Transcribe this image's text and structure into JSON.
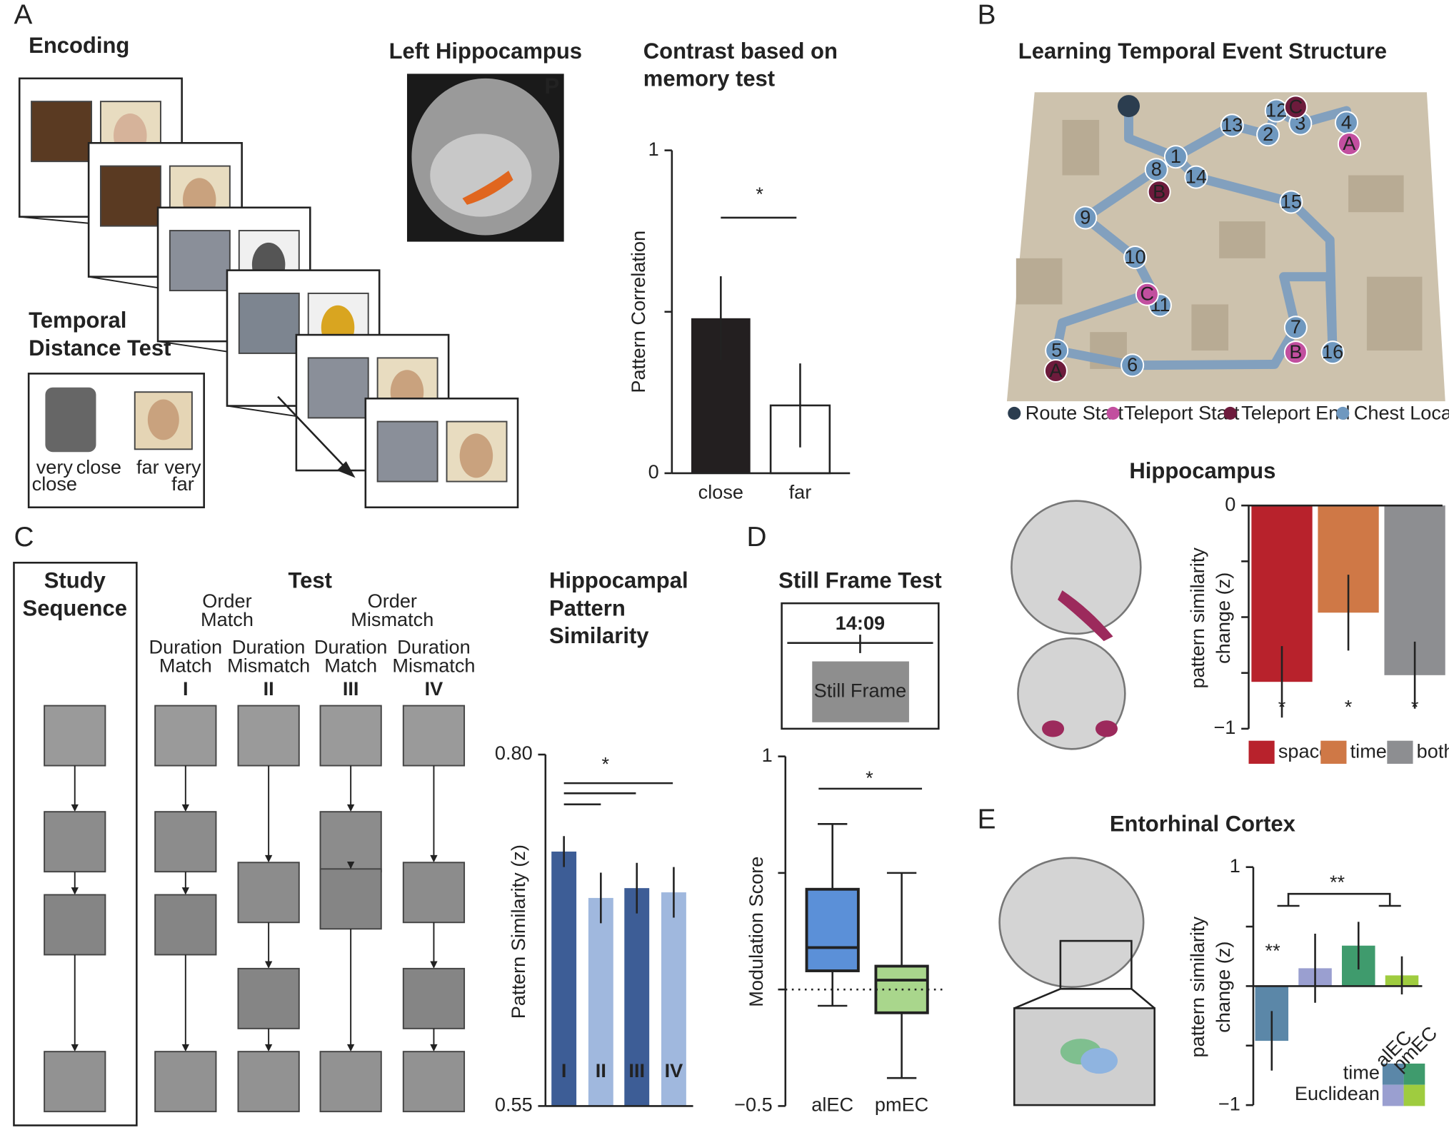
{
  "panel_labels": [
    "A",
    "B",
    "C",
    "D",
    "E"
  ],
  "panel_a": {
    "encoding": "Encoding",
    "brain_title": "Left Hippocampus",
    "brain_orientation": "P",
    "test_title": [
      "Temporal",
      "Distance Test"
    ],
    "scale_labels": [
      [
        "very",
        "close"
      ],
      [
        "close"
      ],
      [
        "far"
      ],
      [
        "very",
        "far"
      ]
    ]
  },
  "panel_b": {
    "title": "Learning Temporal Event Structure",
    "chest_locations": [
      "1",
      "2",
      "3",
      "4",
      "5",
      "6",
      "7",
      "8",
      "9",
      "10",
      "11",
      "12",
      "13",
      "14",
      "15",
      "16"
    ],
    "teleport_starts": [
      "A",
      "B",
      "C"
    ],
    "teleport_ends": [
      "A",
      "B",
      "C"
    ],
    "legend": [
      {
        "label": "Route Start",
        "color": "#2b3d4f"
      },
      {
        "label": "Teleport Start",
        "color": "#c24f9f"
      },
      {
        "label": "Teleport End",
        "color": "#6d1b3c"
      },
      {
        "label": "Chest Location",
        "color": "#6f98bf"
      }
    ]
  },
  "panel_c": {
    "study_title": [
      "Study",
      "Sequence"
    ],
    "test_title": "Test",
    "order_groups": [
      [
        "Order",
        "Match"
      ],
      [
        "Order",
        "Mismatch"
      ]
    ],
    "conditions": [
      [
        "Duration",
        "Match"
      ],
      [
        "Duration",
        "Mismatch"
      ],
      [
        "Duration",
        "Match"
      ],
      [
        "Duration",
        "Mismatch"
      ]
    ],
    "numerals": [
      "I",
      "II",
      "III",
      "IV"
    ]
  },
  "panel_d": {
    "title": "Still Frame Test",
    "timestamp": "14:09",
    "frame_label": "Still Frame"
  },
  "chart_data": [
    {
      "type": "bar",
      "title": [
        "Contrast based on",
        "memory test"
      ],
      "ylabel": [
        "Pattern Correlation"
      ],
      "categories": [
        "close",
        "far"
      ],
      "values": [
        0.48,
        0.21
      ],
      "errors": [
        0.13,
        0.13
      ],
      "colors": [
        "#231f20",
        "#ffffff"
      ],
      "ylim": [
        0,
        1
      ],
      "yticks": [
        0,
        1
      ],
      "minor_yticks": [
        0.5
      ],
      "significance": [
        "*"
      ]
    },
    {
      "type": "bar",
      "title": [
        "Hippocampus"
      ],
      "ylabel": [
        "pattern similarity",
        "change (z)"
      ],
      "categories": [
        "space",
        "time",
        "both"
      ],
      "values": [
        -0.79,
        -0.48,
        -0.76
      ],
      "errors": [
        0.16,
        0.17,
        0.15
      ],
      "colors": [
        "#b8222c",
        "#cf7846",
        "#8d8e91"
      ],
      "ylim": [
        -1,
        0
      ],
      "yticks": [
        0,
        {
          "value": -1,
          "label": "−1"
        }
      ],
      "minor_yticks": [
        -0.25,
        -0.5,
        -0.75
      ],
      "significance": [
        "*",
        "*",
        "*"
      ]
    },
    {
      "type": "bar",
      "title": [
        "Hippocampal",
        "Pattern",
        "Similarity"
      ],
      "ylabel": [
        "Pattern Similarity (z)"
      ],
      "categories": [
        "I",
        "II",
        "III",
        "IV"
      ],
      "values": [
        0.731,
        0.698,
        0.705,
        0.702
      ],
      "errors": [
        0.011,
        0.018,
        0.018,
        0.018
      ],
      "colors": [
        "#3d5d96",
        "#a0b8de",
        "#3d5d96",
        "#a0b8de"
      ],
      "ylim": [
        0.55,
        0.8
      ],
      "yticks": [
        0.55,
        {
          "value": 0.8,
          "label": "0.80"
        }
      ],
      "significance": [
        "*"
      ]
    },
    {
      "type": "box",
      "ylabel": [
        "Modulation Score"
      ],
      "categories": [
        "alEC",
        "pmEC"
      ],
      "whisker_low": [
        -0.07,
        -0.38
      ],
      "q1": [
        0.08,
        -0.1
      ],
      "median": [
        0.18,
        0.04
      ],
      "q3": [
        0.43,
        0.1
      ],
      "whisker_high": [
        0.71,
        0.5
      ],
      "colors": [
        "#5b90d8",
        "#a9d68c"
      ],
      "ylim": [
        -0.5,
        1
      ],
      "yticks": [
        {
          "value": -0.5,
          "label": "−0.5"
        },
        1
      ],
      "minor_yticks": [
        0,
        0.5
      ],
      "reference_line": 0,
      "significance": [
        "*"
      ]
    },
    {
      "type": "bar",
      "title": [
        "Entorhinal Cortex"
      ],
      "ylabel": [
        "pattern similarity",
        "change (z)"
      ],
      "categories": [
        "alEC",
        "pmEC"
      ],
      "series": [
        {
          "name": "time",
          "values": [
            -0.46,
            0.34
          ],
          "errors": [
            0.25,
            0.2
          ],
          "colors": [
            "#5b87a8",
            "#3f9b6d"
          ]
        },
        {
          "name": "Euclidean",
          "values": [
            0.15,
            0.09
          ],
          "errors": [
            0.29,
            0.16
          ],
          "colors": [
            "#9a9fd0",
            "#9fcc3f"
          ]
        }
      ],
      "ylim": [
        -1,
        1
      ],
      "yticks": [
        {
          "value": -1,
          "label": "−1"
        },
        1
      ],
      "minor_yticks": [
        -0.5,
        0,
        0.5
      ],
      "significance": [
        "**",
        "**"
      ]
    }
  ]
}
